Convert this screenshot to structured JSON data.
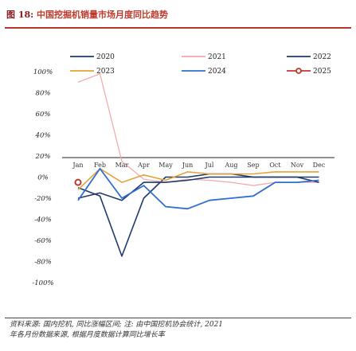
{
  "figure": {
    "label": "图 18:",
    "title": "中国挖掘机销量市场月度同比趋势"
  },
  "footer": {
    "line1": "资料来源: 国内挖机, 同比涨幅区间; 注: 由中国挖机协会统计, 2021",
    "line2": "年各月份数据来源, 根据月度数据计算同比增长率"
  },
  "colors": {
    "2020": "#1f3a6b",
    "2021": "#f4a6a6",
    "2022": "#1f3a6b",
    "2023": "#e6a23c",
    "2024": "#2e6fd0",
    "2025": "#c0392b",
    "axis": "#222222"
  },
  "chart_data": {
    "type": "line",
    "categories": [
      "Jan",
      "Feb",
      "Mar",
      "Apr",
      "May",
      "Jun",
      "Jul",
      "Aug",
      "Sep",
      "Oct",
      "Nov",
      "Dec"
    ],
    "ylim": [
      -100,
      100
    ],
    "yticks": [
      "100%",
      "80%",
      "60%",
      "40%",
      "20%",
      "0%",
      "-20%",
      "-40%",
      "-60%",
      "-80%",
      "-100%"
    ],
    "legend_position": "top",
    "series": [
      {
        "name": "2020",
        "values": [
          -10,
          -18,
          -75,
          -20,
          0,
          0,
          3,
          3,
          0,
          0,
          0,
          0
        ]
      },
      {
        "name": "2021",
        "values": [
          90,
          98,
          15,
          -2,
          -5,
          -2,
          -3,
          -5,
          -8,
          -5,
          -5,
          -5
        ]
      },
      {
        "name": "2022",
        "values": [
          -20,
          -15,
          -22,
          -5,
          -5,
          -3,
          0,
          0,
          0,
          0,
          0,
          -5
        ]
      },
      {
        "name": "2023",
        "values": [
          -12,
          8,
          -5,
          2,
          -3,
          5,
          3,
          3,
          3,
          5,
          5,
          5
        ]
      },
      {
        "name": "2024",
        "values": [
          -22,
          8,
          -20,
          -8,
          -28,
          -30,
          -22,
          -20,
          -18,
          -5,
          -5,
          -3
        ]
      },
      {
        "name": "2025",
        "values": [
          -5,
          null,
          null,
          null,
          null,
          null,
          null,
          null,
          null,
          null,
          null,
          null
        ]
      }
    ]
  }
}
